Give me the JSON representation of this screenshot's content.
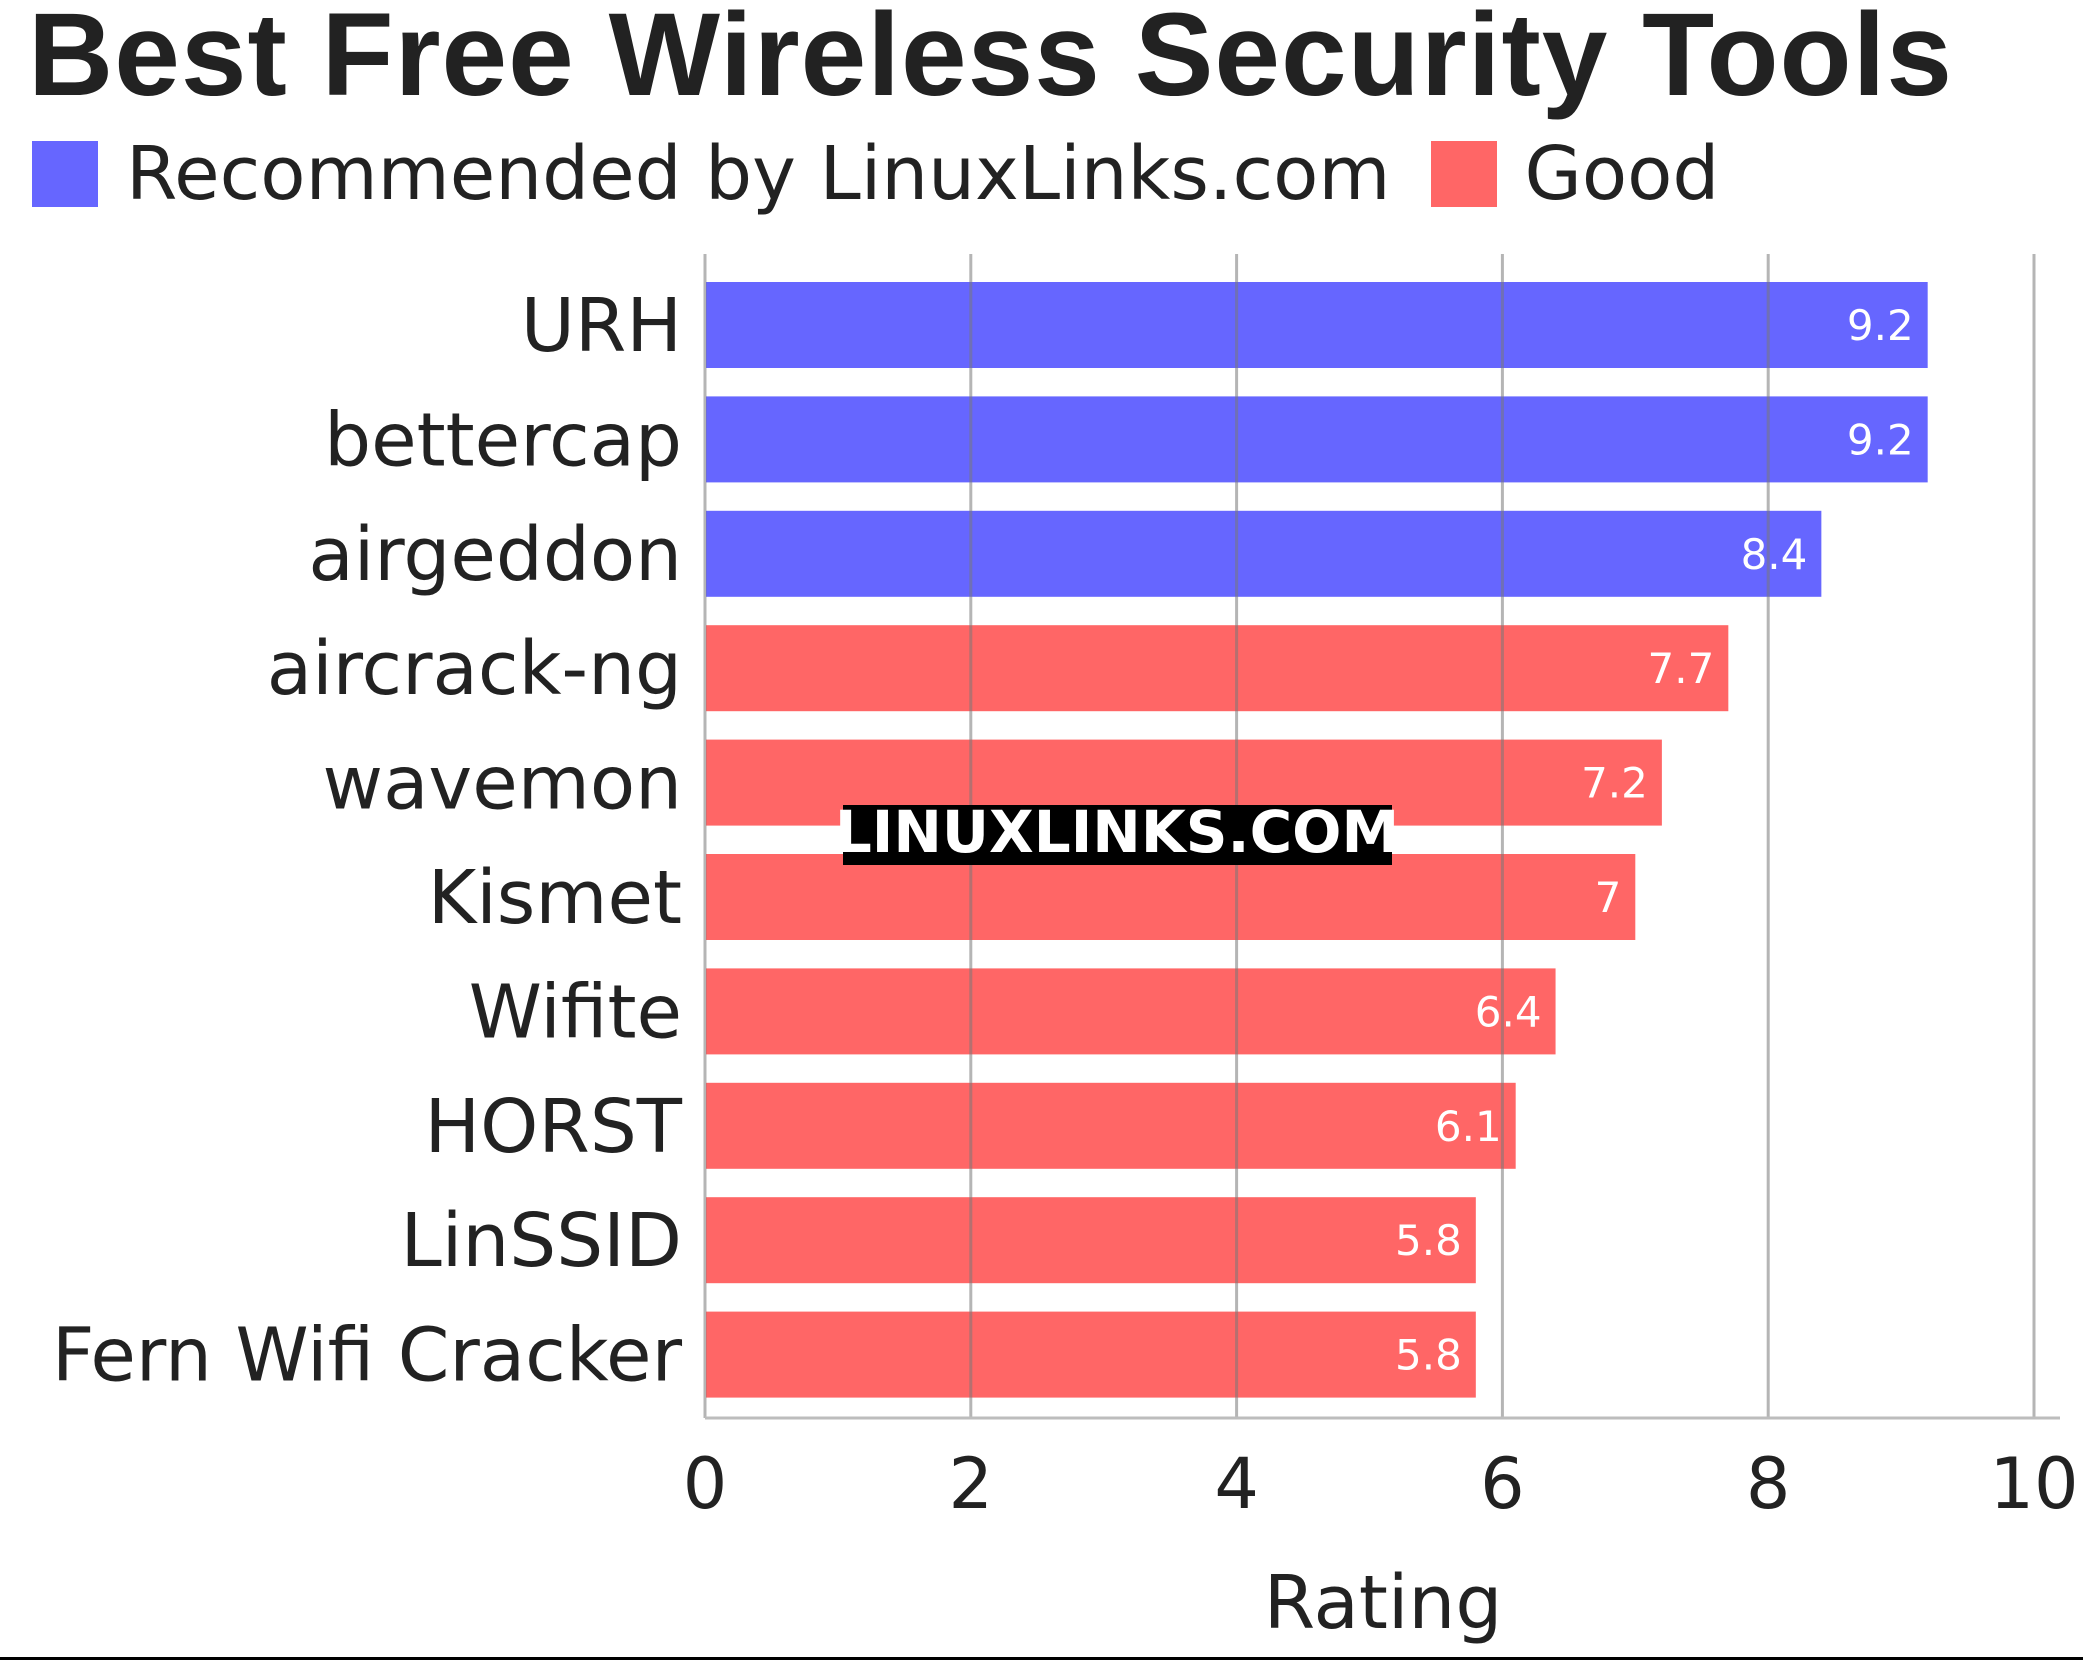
{
  "chart_data": {
    "type": "bar",
    "orientation": "horizontal",
    "title": "Best Free Wireless Security Tools",
    "xlabel": "Rating",
    "ylabel": "",
    "xlim": [
      0,
      10
    ],
    "xticks": [
      0,
      2,
      4,
      6,
      8,
      10
    ],
    "grid": true,
    "legend_position": "top-left",
    "legend": [
      {
        "name": "Recommended by LinuxLinks.com",
        "color": "#6666ff"
      },
      {
        "name": "Good",
        "color": "#ff6666"
      }
    ],
    "categories": [
      "URH",
      "bettercap",
      "airgeddon",
      "aircrack-ng",
      "wavemon",
      "Kismet",
      "Wifite",
      "HORST",
      "LinSSID",
      "Fern Wifi Cracker"
    ],
    "values": [
      9.2,
      9.2,
      8.4,
      7.7,
      7.2,
      7.0,
      6.4,
      6.1,
      5.8,
      5.8
    ],
    "value_labels": [
      "9.2",
      "9.2",
      "8.4",
      "7.7",
      "7.2",
      "7",
      "6.4",
      "6.1",
      "5.8",
      "5.8"
    ],
    "groups": [
      "Recommended by LinuxLinks.com",
      "Recommended by LinuxLinks.com",
      "Recommended by LinuxLinks.com",
      "Good",
      "Good",
      "Good",
      "Good",
      "Good",
      "Good",
      "Good"
    ]
  },
  "watermark": "LINUXLINKS.COM"
}
